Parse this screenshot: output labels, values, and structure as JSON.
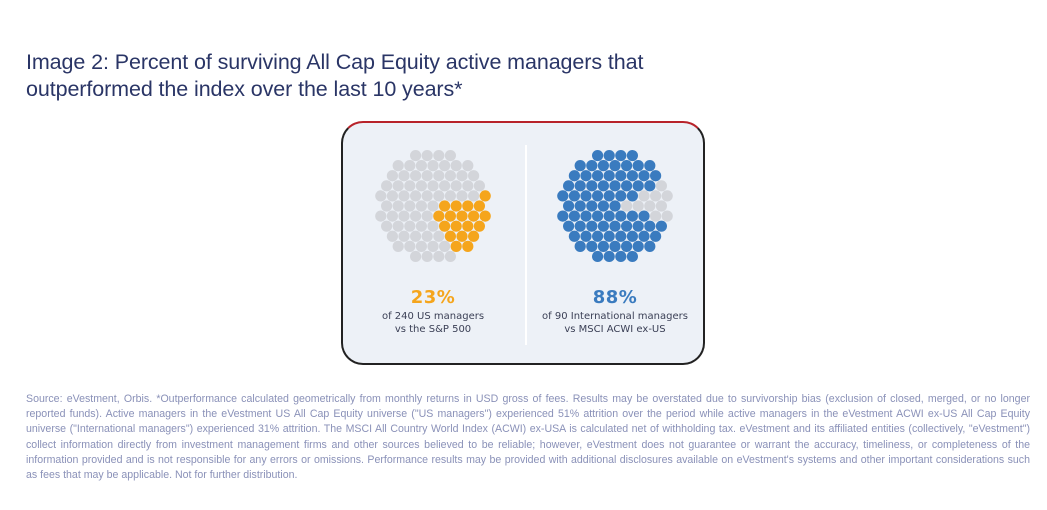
{
  "title": {
    "line1": "Image 2: Percent of surviving All Cap Equity active managers that",
    "line2": "outperformed the index over the last 10 years*"
  },
  "colors": {
    "title": "#2a3566",
    "inactive_dot": "#d3d5da",
    "us_highlight": "#f5a51c",
    "intl_highlight": "#3a7bbf",
    "card_bg": "#edf1f7",
    "footnote": "#8a91b8"
  },
  "chart_data": [
    {
      "type": "pie",
      "style": "dot-cluster",
      "title": "US managers",
      "percent_label": "23%",
      "value_percent": 23,
      "total_managers": 240,
      "subtitle_line1": "of 240 US managers",
      "subtitle_line2": "vs the S&P 500",
      "slices": [
        {
          "name": "Outperformed",
          "value": 23,
          "color": "#f5a51c"
        },
        {
          "name": "Did not outperform",
          "value": 77,
          "color": "#d3d5da"
        }
      ]
    },
    {
      "type": "pie",
      "style": "dot-cluster",
      "title": "International managers",
      "percent_label": "88%",
      "value_percent": 88,
      "total_managers": 90,
      "subtitle_line1": "of 90 International managers",
      "subtitle_line2": "vs MSCI ACWI ex-US",
      "slices": [
        {
          "name": "Outperformed",
          "value": 88,
          "color": "#3a7bbf"
        },
        {
          "name": "Did not outperform",
          "value": 12,
          "color": "#d3d5da"
        }
      ]
    }
  ],
  "footnote": "Source: eVestment, Orbis. *Outperformance calculated geometrically from monthly returns in USD gross of fees. Results may be overstated due to survivorship bias (exclusion of closed, merged, or no longer reported funds). Active managers in the eVestment US All Cap Equity universe (\"US managers\") experienced 51% attrition over the period while active managers in the eVestment ACWI ex-US All Cap Equity universe (\"International managers\") experienced 31% attrition. The MSCI All Country World Index (ACWI) ex-USA is calculated net of withholding tax. eVestment and its affiliated entities (collectively, \"eVestment\") collect information directly from investment management firms and other sources believed to be reliable; however, eVestment does not guarantee or warrant the accuracy, timeliness, or completeness of the information provided and is not responsible for any errors or omissions. Performance results may be provided with additional disclosures available on eVestment's systems and other important considerations such as fees that may be applicable. Not for further distribution."
}
